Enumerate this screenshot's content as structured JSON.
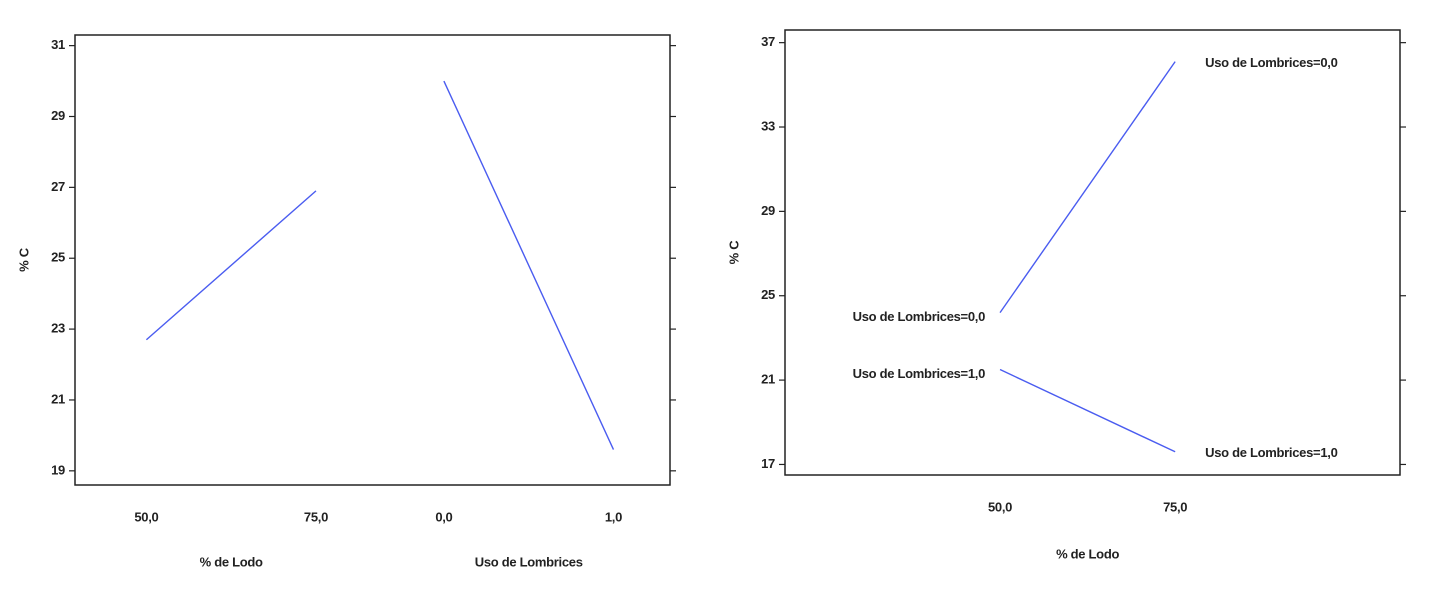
{
  "chart_data": [
    {
      "type": "main_effects",
      "ylabel": "% C",
      "ylim": [
        18.6,
        31.3
      ],
      "yticks": [
        19,
        21,
        23,
        25,
        27,
        29,
        31
      ],
      "color": "#4a5cf0",
      "factors": [
        {
          "name": "% de Lodo",
          "levels": [
            "50,0",
            "75,0"
          ],
          "values": [
            22.7,
            26.9
          ]
        },
        {
          "name": "Uso de Lombrices",
          "levels": [
            "0,0",
            "1,0"
          ],
          "values": [
            30.0,
            19.6
          ]
        }
      ]
    },
    {
      "type": "line",
      "xlabel": "% de Lodo",
      "ylabel": "% C",
      "xlim": [
        19.3,
        107.1
      ],
      "ylim": [
        16.5,
        37.6
      ],
      "xticks": [
        {
          "value": 50,
          "label": "50,0"
        },
        {
          "value": 75,
          "label": "75,0"
        }
      ],
      "yticks": [
        17,
        21,
        25,
        29,
        33,
        37
      ],
      "x": [
        50,
        75
      ],
      "series": [
        {
          "name": "Uso de Lombrices=0,0",
          "color": "#4a5cf0",
          "values": [
            24.2,
            36.1
          ]
        },
        {
          "name": "Uso de Lombrices=1,0",
          "color": "#4a5cf0",
          "values": [
            21.5,
            17.6
          ]
        }
      ]
    }
  ]
}
